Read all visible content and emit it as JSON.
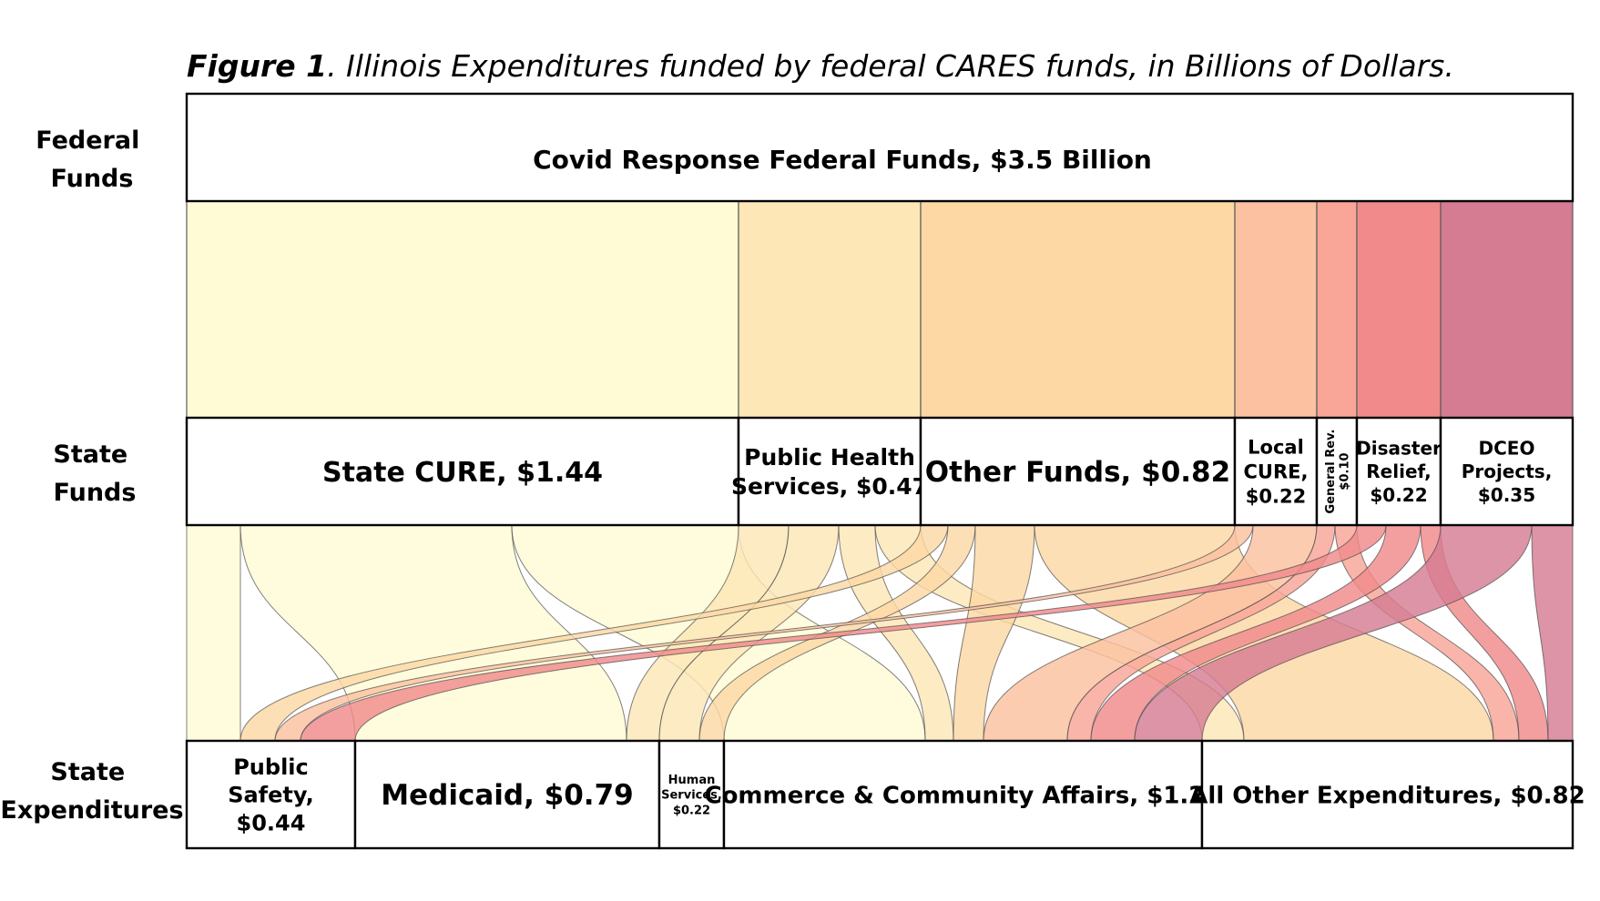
{
  "figure": {
    "title_bold": "Figure 1",
    "title_rest": ". Illinois Expenditures funded by federal CARES funds, in Billions of Dollars."
  },
  "rows": {
    "federal": [
      "Federal",
      "Funds"
    ],
    "state_funds": [
      "State",
      "Funds"
    ],
    "state_expenditures": [
      "State",
      "Expenditures"
    ]
  },
  "federal_node": {
    "label": "Covid Response Federal Funds, $3.5 Billion",
    "value": 3.5
  },
  "state_funds": [
    {
      "id": "state_cure",
      "lines": [
        "State CURE, $1.44"
      ],
      "value": 1.44,
      "color": "#FEFBD5"
    },
    {
      "id": "public_health",
      "lines": [
        "Public Health",
        "Services, $0.47"
      ],
      "value": 0.47,
      "color": "#FDE7B6"
    },
    {
      "id": "other_funds",
      "lines": [
        "Other Funds, $0.82"
      ],
      "value": 0.82,
      "color": "#FDD8A5"
    },
    {
      "id": "local_cure",
      "lines": [
        "Local",
        "CURE,",
        "$0.22"
      ],
      "value": 0.22,
      "color": "#FBC1A0"
    },
    {
      "id": "general_rev",
      "lines": [
        "General Rev.",
        "$0.10"
      ],
      "value": 0.1,
      "color": "#F9A597",
      "vertical": true
    },
    {
      "id": "disaster_relief",
      "lines": [
        "Disaster",
        "Relief,",
        "$0.22"
      ],
      "value": 0.22,
      "color": "#F08A8B"
    },
    {
      "id": "dceo_projects",
      "lines": [
        "DCEO",
        "Projects,",
        "$0.35"
      ],
      "value": 0.35,
      "color": "#D57C92"
    }
  ],
  "expenditures": [
    {
      "id": "public_safety",
      "lines": [
        "Public",
        "Safety,",
        "$0.44"
      ],
      "value": 0.44
    },
    {
      "id": "medicaid",
      "lines": [
        "Medicaid, $0.79"
      ],
      "value": 0.79
    },
    {
      "id": "human_services",
      "lines": [
        "Human",
        "Services,",
        "$0.22"
      ],
      "value": 0.22
    },
    {
      "id": "commerce",
      "lines": [
        "Commerce & Community Affairs, $1.24"
      ],
      "value": 1.24
    },
    {
      "id": "all_other",
      "lines": [
        "All Other Expenditures, $0.82"
      ],
      "value": 0.82
    }
  ]
}
